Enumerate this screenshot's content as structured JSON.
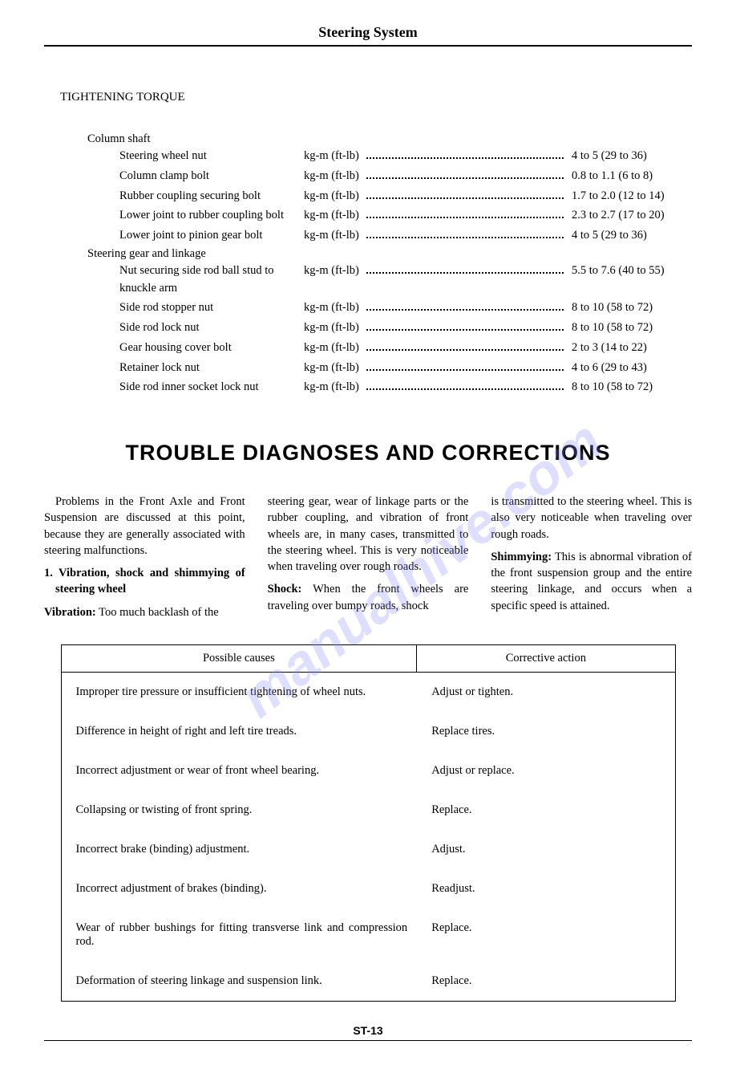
{
  "header": {
    "title": "Steering System"
  },
  "torque": {
    "section_title": "TIGHTENING TORQUE",
    "unit": "kg-m (ft-lb)",
    "groups": [
      {
        "title": "Column shaft",
        "items": [
          {
            "label": "Steering wheel nut",
            "value": "4 to 5 (29 to 36)"
          },
          {
            "label": "Column clamp bolt",
            "value": "0.8 to 1.1 (6 to 8)"
          },
          {
            "label": "Rubber coupling securing bolt",
            "value": "1.7 to 2.0 (12 to 14)"
          },
          {
            "label": "Lower joint to rubber coupling bolt",
            "value": "2.3 to 2.7 (17 to 20)"
          },
          {
            "label": "Lower joint to pinion gear bolt",
            "value": "4 to 5 (29 to 36)"
          }
        ]
      },
      {
        "title": "Steering gear and linkage",
        "items": [
          {
            "label": "Nut securing side rod ball stud to knuckle arm",
            "value": "5.5 to 7.6 (40 to 55)"
          },
          {
            "label": "Side rod stopper nut",
            "value": "8 to 10 (58 to 72)"
          },
          {
            "label": "Side rod lock nut",
            "value": "8 to 10 (58 to 72)"
          },
          {
            "label": "Gear housing cover bolt",
            "value": "2 to 3 (14 to 22)"
          },
          {
            "label": "Retainer lock nut",
            "value": "4 to 6 (29 to 43)"
          },
          {
            "label": "Side rod inner socket lock nut",
            "value": "8 to 10 (58 to 72)"
          }
        ]
      }
    ]
  },
  "trouble": {
    "heading": "TROUBLE DIAGNOSES AND CORRECTIONS",
    "col1": {
      "p1": "Problems in the Front Axle and Front Suspension are discussed at this point, because they are generally associated with steering malfunctions.",
      "sub1": "1. Vibration, shock and shimmying of steering wheel",
      "term_vib": "Vibration:",
      "vib_text": "Too much backlash of the"
    },
    "col2": {
      "p1": "steering gear, wear of linkage parts or the rubber coupling, and vibration of front wheels are, in many cases, transmitted to the steering wheel. This is very noticeable when traveling over rough roads.",
      "term_shock": "Shock:",
      "shock_text": "When the front wheels are traveling over bumpy roads, shock"
    },
    "col3": {
      "p1": "is transmitted to the steering wheel. This is also very noticeable when traveling over rough roads.",
      "term_shimmy": "Shimmying:",
      "shimmy_text": "This is abnormal vibration of the front suspension group and the entire steering linkage, and occurs when a specific speed is attained."
    },
    "table": {
      "headers": [
        "Possible causes",
        "Corrective action"
      ],
      "rows": [
        [
          "Improper tire pressure or insufficient tightening of wheel nuts.",
          "Adjust or tighten."
        ],
        [
          "Difference in height of right and left tire treads.",
          "Replace tires."
        ],
        [
          "Incorrect adjustment or wear of front wheel bearing.",
          "Adjust or replace."
        ],
        [
          "Collapsing or twisting of front spring.",
          "Replace."
        ],
        [
          "Incorrect brake (binding) adjustment.",
          "Adjust."
        ],
        [
          "Incorrect adjustment of brakes (binding).",
          "Readjust."
        ],
        [
          "Wear of rubber bushings for fitting transverse link and compression rod.",
          "Replace."
        ],
        [
          "Deformation of steering linkage and suspension link.",
          "Replace."
        ]
      ]
    }
  },
  "footer": {
    "page": "ST-13"
  }
}
